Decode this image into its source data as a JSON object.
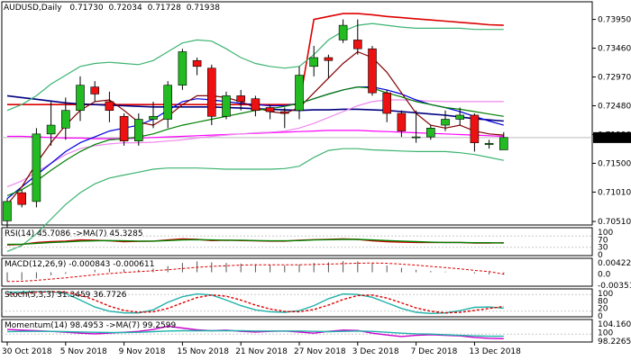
{
  "chart_data": {
    "type": "candlestick",
    "header": {
      "symbol": "AUDUSD,Daily",
      "open": "0.71730",
      "high": "0.72034",
      "low": "0.71728",
      "close": "0.71938"
    },
    "price_axis": {
      "min": 0.7045,
      "max": 0.7425,
      "ticks": [
        "0.73950",
        "0.73460",
        "0.72970",
        "0.72480",
        "0.71990",
        "0.71500",
        "0.71010",
        "0.70510"
      ],
      "current": "0.71938"
    },
    "x_labels": [
      {
        "i": 0,
        "text": "30 Oct 2018"
      },
      {
        "i": 4,
        "text": "5 Nov 2018"
      },
      {
        "i": 8,
        "text": "9 Nov 2018"
      },
      {
        "i": 12,
        "text": "15 Nov 2018"
      },
      {
        "i": 16,
        "text": "21 Nov 2018"
      },
      {
        "i": 20,
        "text": "27 Nov 2018"
      },
      {
        "i": 24,
        "text": "3 Dec 2018"
      },
      {
        "i": 28,
        "text": "7 Dec 2018"
      },
      {
        "i": 32,
        "text": "13 Dec 2018"
      }
    ],
    "candles": [
      {
        "o": 0.7052,
        "h": 0.709,
        "l": 0.704,
        "c": 0.7085
      },
      {
        "o": 0.71,
        "h": 0.7105,
        "l": 0.7075,
        "c": 0.708
      },
      {
        "o": 0.7085,
        "h": 0.721,
        "l": 0.7075,
        "c": 0.72
      },
      {
        "o": 0.72,
        "h": 0.7255,
        "l": 0.718,
        "c": 0.7215
      },
      {
        "o": 0.721,
        "h": 0.7262,
        "l": 0.719,
        "c": 0.724
      },
      {
        "o": 0.724,
        "h": 0.7298,
        "l": 0.7222,
        "c": 0.7283
      },
      {
        "o": 0.728,
        "h": 0.729,
        "l": 0.7255,
        "c": 0.7268
      },
      {
        "o": 0.7255,
        "h": 0.7272,
        "l": 0.722,
        "c": 0.724
      },
      {
        "o": 0.723,
        "h": 0.7235,
        "l": 0.718,
        "c": 0.7188
      },
      {
        "o": 0.7188,
        "h": 0.7235,
        "l": 0.718,
        "c": 0.7225
      },
      {
        "o": 0.7225,
        "h": 0.7255,
        "l": 0.721,
        "c": 0.723
      },
      {
        "o": 0.7225,
        "h": 0.729,
        "l": 0.721,
        "c": 0.7283
      },
      {
        "o": 0.7283,
        "h": 0.7345,
        "l": 0.7275,
        "c": 0.734
      },
      {
        "o": 0.7325,
        "h": 0.733,
        "l": 0.73,
        "c": 0.7315
      },
      {
        "o": 0.7312,
        "h": 0.7318,
        "l": 0.7215,
        "c": 0.723
      },
      {
        "o": 0.723,
        "h": 0.7272,
        "l": 0.7225,
        "c": 0.7265
      },
      {
        "o": 0.7265,
        "h": 0.7275,
        "l": 0.724,
        "c": 0.7255
      },
      {
        "o": 0.726,
        "h": 0.7265,
        "l": 0.723,
        "c": 0.724
      },
      {
        "o": 0.7245,
        "h": 0.725,
        "l": 0.7225,
        "c": 0.7238
      },
      {
        "o": 0.7238,
        "h": 0.7245,
        "l": 0.721,
        "c": 0.7235
      },
      {
        "o": 0.724,
        "h": 0.7315,
        "l": 0.7225,
        "c": 0.73
      },
      {
        "o": 0.7315,
        "h": 0.735,
        "l": 0.7298,
        "c": 0.733
      },
      {
        "o": 0.733,
        "h": 0.7335,
        "l": 0.7295,
        "c": 0.7325
      },
      {
        "o": 0.736,
        "h": 0.7395,
        "l": 0.7355,
        "c": 0.7385
      },
      {
        "o": 0.736,
        "h": 0.7395,
        "l": 0.7335,
        "c": 0.7345
      },
      {
        "o": 0.7345,
        "h": 0.735,
        "l": 0.7265,
        "c": 0.727
      },
      {
        "o": 0.727,
        "h": 0.7275,
        "l": 0.722,
        "c": 0.7235
      },
      {
        "o": 0.7235,
        "h": 0.724,
        "l": 0.7195,
        "c": 0.7205
      },
      {
        "o": 0.7195,
        "h": 0.724,
        "l": 0.7185,
        "c": 0.7195
      },
      {
        "o": 0.7195,
        "h": 0.7215,
        "l": 0.719,
        "c": 0.721
      },
      {
        "o": 0.7215,
        "h": 0.724,
        "l": 0.7205,
        "c": 0.7225
      },
      {
        "o": 0.7225,
        "h": 0.7245,
        "l": 0.7215,
        "c": 0.7232
      },
      {
        "o": 0.7232,
        "h": 0.7235,
        "l": 0.717,
        "c": 0.7185
      },
      {
        "o": 0.7182,
        "h": 0.719,
        "l": 0.7175,
        "c": 0.7184
      },
      {
        "o": 0.7173,
        "h": 0.7203,
        "l": 0.7173,
        "c": 0.7194
      }
    ],
    "overlay_lines": [
      {
        "color": "#dd0000",
        "values": [
          0.725,
          0.725,
          0.725,
          0.725,
          0.725,
          0.725,
          0.725,
          0.725,
          0.725,
          0.725,
          0.725,
          0.725,
          0.725,
          0.725,
          0.725,
          0.725,
          0.725,
          0.725,
          0.725,
          0.725,
          0.725,
          0.7395,
          0.74,
          0.7405,
          0.7405,
          0.7403,
          0.74,
          0.7398,
          0.7396,
          0.7394,
          0.7392,
          0.739,
          0.7388,
          0.7386,
          0.7385
        ]
      },
      {
        "color": "#000080",
        "values": [
          0.7265,
          0.7262,
          0.7259,
          0.7256,
          0.7253,
          0.7251,
          0.725,
          0.7249,
          0.7248,
          0.7247,
          0.7246,
          0.7246,
          0.7246,
          0.7246,
          0.7246,
          0.7245,
          0.7244,
          0.7243,
          0.7242,
          0.7241,
          0.724,
          0.7241,
          0.7241,
          0.7242,
          0.7242,
          0.7241,
          0.724,
          0.7238,
          0.7236,
          0.7234,
          0.7232,
          0.7229,
          0.7226,
          0.7224,
          0.7222
        ]
      },
      {
        "color": "#ff00ff",
        "values": [
          0.7196,
          0.7196,
          0.7195,
          0.7194,
          0.7193,
          0.7193,
          0.7192,
          0.7192,
          0.7192,
          0.7193,
          0.7194,
          0.7195,
          0.7196,
          0.7197,
          0.7198,
          0.7199,
          0.72,
          0.7201,
          0.7202,
          0.7203,
          0.7204,
          0.7205,
          0.7206,
          0.7206,
          0.7206,
          0.7205,
          0.7204,
          0.7203,
          0.7202,
          0.7201,
          0.72,
          0.7199,
          0.7198,
          0.7197,
          0.7196
        ]
      },
      {
        "color": "#ee88ee",
        "values": [
          0.711,
          0.712,
          0.7135,
          0.715,
          0.7165,
          0.7175,
          0.718,
          0.7183,
          0.7185,
          0.7185,
          0.7186,
          0.7188,
          0.719,
          0.7193,
          0.7196,
          0.7198,
          0.72,
          0.7202,
          0.7203,
          0.7205,
          0.721,
          0.7218,
          0.7228,
          0.7238,
          0.7248,
          0.7255,
          0.7258,
          0.7258,
          0.7257,
          0.7256,
          0.7255,
          0.7255,
          0.7255,
          0.7255,
          0.7255
        ]
      },
      {
        "color": "#0000dd",
        "values": [
          0.709,
          0.711,
          0.713,
          0.715,
          0.717,
          0.7185,
          0.7195,
          0.7205,
          0.721,
          0.7215,
          0.7225,
          0.724,
          0.7255,
          0.726,
          0.7258,
          0.7255,
          0.7252,
          0.725,
          0.7248,
          0.7248,
          0.7252,
          0.726,
          0.7268,
          0.7275,
          0.728,
          0.728,
          0.7275,
          0.7268,
          0.7258,
          0.725,
          0.7245,
          0.7238,
          0.723,
          0.7222,
          0.7215
        ]
      },
      {
        "color": "#800000",
        "values": [
          0.708,
          0.711,
          0.715,
          0.7185,
          0.7215,
          0.724,
          0.7255,
          0.7258,
          0.724,
          0.722,
          0.7215,
          0.723,
          0.725,
          0.7265,
          0.7265,
          0.7262,
          0.7255,
          0.7245,
          0.7238,
          0.7235,
          0.7245,
          0.727,
          0.7295,
          0.732,
          0.734,
          0.733,
          0.7305,
          0.727,
          0.7235,
          0.7215,
          0.721,
          0.7215,
          0.7205,
          0.72,
          0.7198
        ]
      },
      {
        "color": "#008000",
        "values": [
          0.7095,
          0.7105,
          0.712,
          0.7138,
          0.7155,
          0.717,
          0.7182,
          0.719,
          0.7192,
          0.7195,
          0.72,
          0.7208,
          0.7215,
          0.722,
          0.7225,
          0.723,
          0.7235,
          0.724,
          0.7243,
          0.7247,
          0.7252,
          0.726,
          0.7268,
          0.7275,
          0.728,
          0.7278,
          0.727,
          0.7263,
          0.7255,
          0.725,
          0.7245,
          0.7242,
          0.7238,
          0.7234,
          0.723
        ]
      },
      {
        "color": "#3cb371",
        "values": [
          0.724,
          0.725,
          0.7265,
          0.7285,
          0.73,
          0.7315,
          0.732,
          0.7322,
          0.732,
          0.7318,
          0.7325,
          0.734,
          0.7355,
          0.736,
          0.7358,
          0.7345,
          0.733,
          0.732,
          0.7315,
          0.7312,
          0.7315,
          0.7335,
          0.736,
          0.7375,
          0.7385,
          0.7388,
          0.7385,
          0.7382,
          0.738,
          0.738,
          0.738,
          0.738,
          0.7378,
          0.7378,
          0.7378
        ]
      },
      {
        "color": "#3cb371",
        "values": [
          0.7,
          0.701,
          0.703,
          0.7055,
          0.708,
          0.71,
          0.7115,
          0.7125,
          0.713,
          0.7135,
          0.714,
          0.7142,
          0.7142,
          0.7142,
          0.7141,
          0.714,
          0.714,
          0.714,
          0.714,
          0.7141,
          0.7145,
          0.716,
          0.7172,
          0.7175,
          0.7175,
          0.7173,
          0.7172,
          0.7171,
          0.717,
          0.717,
          0.717,
          0.7168,
          0.7165,
          0.716,
          0.7155
        ]
      }
    ],
    "panels": [
      {
        "name": "rsi",
        "label": "RSI(14) 45.7086  ->MA(7) 45.3285",
        "min": 0,
        "max": 100,
        "ticks": [
          "100",
          "70",
          "30",
          "0"
        ],
        "levels": [
          70,
          30
        ],
        "series": [
          {
            "color": "#cc0000",
            "values": [
              38,
              40,
              47,
              50,
              52,
              56,
              55,
              53,
              50,
              51,
              52,
              56,
              60,
              58,
              54,
              55,
              54,
              53,
              52,
              52,
              55,
              57,
              58,
              60,
              58,
              53,
              50,
              48,
              47,
              47,
              47,
              47,
              45,
              45,
              46
            ]
          },
          {
            "color": "#008000",
            "values": [
              40,
              41,
              44,
              47,
              49,
              52,
              53,
              54,
              53,
              52,
              52,
              54,
              56,
              57,
              56,
              55,
              55,
              54,
              53,
              53,
              54,
              56,
              57,
              58,
              58,
              56,
              54,
              52,
              50,
              48,
              47,
              47,
              46,
              46,
              45
            ]
          }
        ]
      },
      {
        "name": "macd",
        "label": "MACD(12,26,9) -0.000843 -0.000611",
        "min": -0.0045,
        "max": 0.0045,
        "ticks": [
          "0.004228",
          "0.0",
          "-0.003515"
        ],
        "bars": [
          -0.003,
          -0.0025,
          -0.002,
          -0.001,
          -0.0005,
          0.0,
          0.0008,
          0.0012,
          0.001,
          0.0008,
          0.0012,
          0.002,
          0.003,
          0.0035,
          0.0032,
          0.003,
          0.0028,
          0.0026,
          0.0024,
          0.0022,
          0.0025,
          0.003,
          0.0032,
          0.0036,
          0.0035,
          0.003,
          0.0022,
          0.0014,
          0.0008,
          0.0004,
          0.0002,
          0.0,
          -0.0004,
          -0.0007,
          -0.0008
        ],
        "signal": [
          -0.003,
          -0.0029,
          -0.0026,
          -0.0022,
          -0.0018,
          -0.0013,
          -0.0008,
          -0.0004,
          -0.0001,
          0.0002,
          0.0005,
          0.0008,
          0.0012,
          0.0016,
          0.0019,
          0.0021,
          0.0023,
          0.0024,
          0.0024,
          0.0024,
          0.0024,
          0.0025,
          0.0026,
          0.0028,
          0.0029,
          0.003,
          0.0029,
          0.0026,
          0.0023,
          0.0019,
          0.0015,
          0.0011,
          0.0006,
          0.0002,
          -0.0006
        ]
      },
      {
        "name": "stoch",
        "label": "Stoch(5,3,3) 31.3459 36.7726",
        "min": 0,
        "max": 100,
        "ticks": [
          "100",
          "80",
          "20",
          "0"
        ],
        "levels": [
          80,
          20
        ],
        "series": [
          {
            "color": "#20b2aa",
            "values": [
              88,
              89,
              90,
              90,
              84,
              60,
              35,
              20,
              14,
              14,
              25,
              52,
              72,
              82,
              78,
              60,
              40,
              25,
              18,
              16,
              22,
              40,
              65,
              82,
              80,
              70,
              50,
              30,
              16,
              12,
              14,
              22,
              34,
              35,
              31
            ]
          },
          {
            "color": "#dd0000",
            "dashed": true,
            "values": [
              80,
              84,
              88,
              90,
              88,
              78,
              60,
              38,
              23,
              16,
              18,
              30,
              50,
              69,
              78,
              74,
              60,
              42,
              28,
              19,
              18,
              26,
              42,
              62,
              76,
              78,
              67,
              50,
              32,
              20,
              14,
              16,
              23,
              30,
              37
            ]
          }
        ]
      },
      {
        "name": "momentum",
        "label": "Momentum(14) 98.4953  ->MA(7) 99.2599",
        "min": 97.4,
        "max": 104.8,
        "ticks": [
          "104.1607",
          "100",
          "98.2265"
        ],
        "levels": [
          100
        ],
        "series": [
          {
            "color": "#cc00cc",
            "values": [
              101.5,
              101.3,
              101.1,
              100.9,
              100.6,
              100.3,
              100.1,
              100.3,
              100.6,
              100.9,
              101.5,
              102.6,
              102.0,
              101.4,
              101.1,
              101.3,
              100.9,
              100.7,
              100.9,
              101.0,
              100.7,
              100.3,
              100.9,
              101.3,
              101.2,
              100.3,
              99.7,
              99.2,
              99.6,
              99.8,
              99.6,
              99.4,
              98.9,
              98.6,
              98.5
            ]
          },
          {
            "color": "#20b2aa",
            "values": [
              100.8,
              100.9,
              100.9,
              100.9,
              100.8,
              100.7,
              100.6,
              100.5,
              100.5,
              100.6,
              100.8,
              101.0,
              101.1,
              101.1,
              101.1,
              101.1,
              101.1,
              101.0,
              101.0,
              101.0,
              101.0,
              100.9,
              100.8,
              100.9,
              101.0,
              100.9,
              100.6,
              100.3,
              100.1,
              100.0,
              99.8,
              99.6,
              99.4,
              99.3,
              99.3
            ]
          }
        ]
      }
    ],
    "colors": {
      "bull": "#22bb22",
      "bear": "#ee1111",
      "grid": "#c8c8c8",
      "frame": "#000000"
    }
  }
}
